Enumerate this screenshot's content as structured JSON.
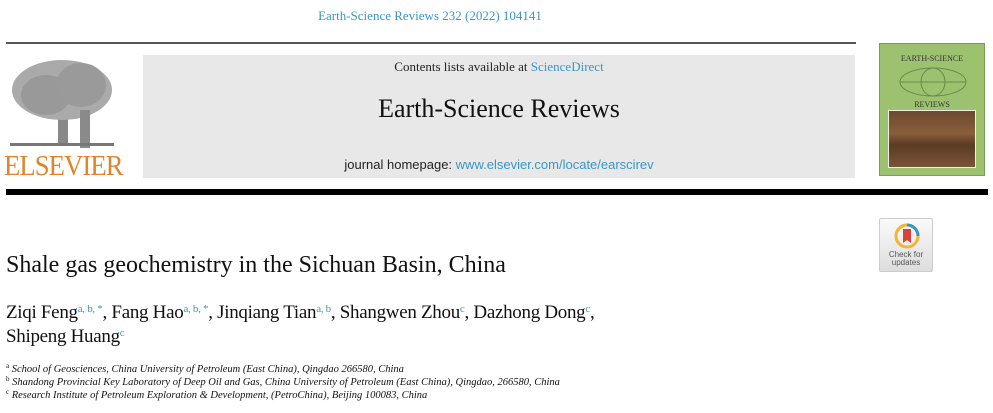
{
  "header": {
    "citation": "Earth-Science Reviews 232 (2022) 104141",
    "publisher_logo": "ELSEVIER",
    "contents_prefix": "Contents lists available at ",
    "contents_link": "ScienceDirect",
    "journal_title": "Earth-Science Reviews",
    "homepage_prefix": "journal homepage: ",
    "homepage_link": "www.elsevier.com/locate/earscirev",
    "cover_title": "EARTH-SCIENCE",
    "cover_subtitle": "REVIEWS",
    "check_updates": "Check for updates"
  },
  "article": {
    "title": "Shale gas geochemistry in the Sichuan Basin, China",
    "authors": [
      {
        "name": "Ziqi Feng",
        "sup": "a, b, *",
        "sep": ", "
      },
      {
        "name": "Fang Hao",
        "sup": "a, b, *",
        "sep": ", "
      },
      {
        "name": "Jinqiang Tian",
        "sup": "a, b",
        "sep": ", "
      },
      {
        "name": "Shangwen Zhou",
        "sup": "c",
        "sep": ", "
      },
      {
        "name": "Dazhong Dong",
        "sup": "c",
        "sep": ","
      },
      {
        "name": "Shipeng Huang",
        "sup": "c",
        "sep": ""
      }
    ],
    "affiliations": [
      {
        "key": "a",
        "text": "School of Geosciences, China University of Petroleum (East China), Qingdao 266580, China"
      },
      {
        "key": "b",
        "text": "Shandong Provincial Key Laboratory of Deep Oil and Gas, China University of Petroleum (East China), Qingdao, 266580, China"
      },
      {
        "key": "c",
        "text": "Research Institute of Petroleum Exploration & Development, (PetroChina), Beijing 100083, China"
      }
    ]
  },
  "colors": {
    "link": "#3a96c8",
    "elsevier_orange": "#e0842a",
    "cover_green": "#9cc270"
  }
}
